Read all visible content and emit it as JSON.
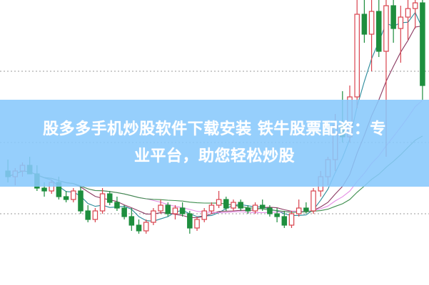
{
  "banner": {
    "line1": "股多多手机炒股软件下载安装 铁牛股票配资：专",
    "line2": "业平台，助您轻松炒股"
  },
  "chart_data": {
    "type": "candlestick",
    "title": "",
    "xlabel": "",
    "ylabel": "",
    "ylim": [
      0,
      100
    ],
    "grid": "horizontal dotted",
    "colors": {
      "up": "#d9434e",
      "down": "#1e8e3e",
      "ma5": "#2a8a9a",
      "ma10": "#8b3a62",
      "ma20": "#e58ee5",
      "ma30": "#3e8e4e",
      "grid": "#999999"
    },
    "moving_averages": [
      5,
      10,
      20,
      30
    ],
    "ohlc": [
      [
        40,
        44,
        36,
        38
      ],
      [
        38,
        41,
        35,
        40
      ],
      [
        40,
        43,
        38,
        42
      ],
      [
        42,
        45,
        39,
        39
      ],
      [
        39,
        42,
        33,
        34
      ],
      [
        34,
        36,
        31,
        33
      ],
      [
        33,
        37,
        32,
        36
      ],
      [
        36,
        38,
        30,
        31
      ],
      [
        31,
        33,
        29,
        30
      ],
      [
        30,
        34,
        29,
        33
      ],
      [
        33,
        35,
        25,
        26
      ],
      [
        26,
        28,
        22,
        23
      ],
      [
        23,
        27,
        22,
        26
      ],
      [
        26,
        34,
        25,
        32
      ],
      [
        32,
        33,
        28,
        29
      ],
      [
        29,
        31,
        26,
        27
      ],
      [
        27,
        28,
        23,
        24
      ],
      [
        24,
        27,
        19,
        21
      ],
      [
        21,
        23,
        18,
        19
      ],
      [
        19,
        23,
        18,
        22
      ],
      [
        22,
        27,
        21,
        26
      ],
      [
        26,
        30,
        25,
        28
      ],
      [
        28,
        29,
        24,
        25
      ],
      [
        25,
        28,
        23,
        27
      ],
      [
        27,
        29,
        24,
        25
      ],
      [
        25,
        26,
        18,
        20
      ],
      [
        20,
        24,
        19,
        23
      ],
      [
        23,
        27,
        22,
        26
      ],
      [
        26,
        29,
        25,
        28
      ],
      [
        28,
        33,
        27,
        30
      ],
      [
        30,
        31,
        26,
        27
      ],
      [
        27,
        30,
        26,
        29
      ],
      [
        29,
        30,
        26,
        27
      ],
      [
        27,
        28,
        25,
        26
      ],
      [
        26,
        29,
        25,
        28
      ],
      [
        28,
        30,
        26,
        27
      ],
      [
        27,
        28,
        24,
        25
      ],
      [
        25,
        27,
        22,
        24
      ],
      [
        24,
        26,
        20,
        21
      ],
      [
        21,
        26,
        20,
        25
      ],
      [
        25,
        30,
        24,
        27
      ],
      [
        27,
        29,
        25,
        26
      ],
      [
        26,
        34,
        25,
        33
      ],
      [
        33,
        40,
        31,
        38
      ],
      [
        38,
        45,
        35,
        44
      ],
      [
        44,
        60,
        40,
        56
      ],
      [
        56,
        68,
        50,
        52
      ],
      [
        52,
        70,
        50,
        66
      ],
      [
        66,
        100,
        62,
        95
      ],
      [
        95,
        100,
        85,
        88
      ],
      [
        88,
        100,
        75,
        96
      ],
      [
        96,
        100,
        80,
        82
      ],
      [
        82,
        100,
        45,
        98
      ],
      [
        98,
        100,
        85,
        90
      ],
      [
        90,
        98,
        78,
        94
      ],
      [
        94,
        100,
        86,
        97
      ],
      [
        97,
        100,
        90,
        99
      ],
      [
        99,
        100,
        65,
        70
      ]
    ],
    "gridlines": [
      75,
      50,
      25
    ]
  }
}
